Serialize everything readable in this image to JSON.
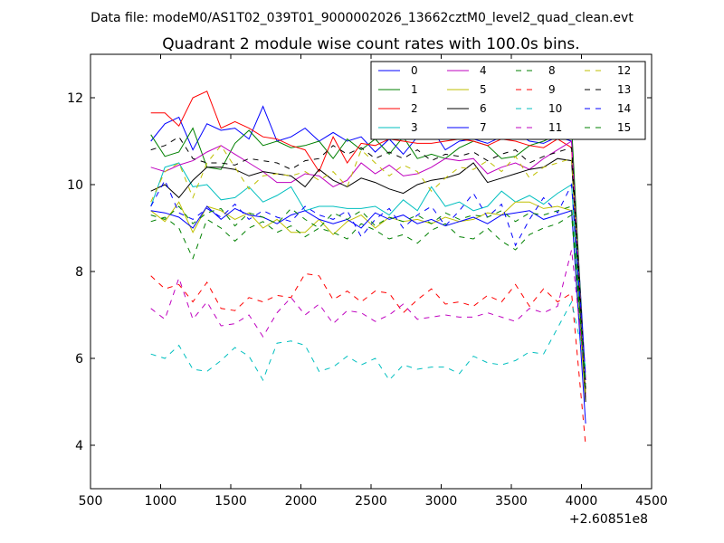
{
  "header": {
    "data_file": "Data file: modeM0/AS1T02_039T01_9000002026_13662cztM0_level2_quad_clean.evt"
  },
  "chart_data": {
    "type": "line",
    "title": "Quadrant 2 module wise count rates with 100.0s bins.",
    "xlabel": "",
    "ylabel": "",
    "xlim": [
      500,
      4500
    ],
    "ylim": [
      3,
      13
    ],
    "x_offset_label": "+2.60851e8",
    "xticks": [
      500,
      1000,
      1500,
      2000,
      2500,
      3000,
      3500,
      4000,
      4500
    ],
    "xtick_labels": [
      "500",
      "1000",
      "1500",
      "2000",
      "2500",
      "3000",
      "3500",
      "4000",
      "4500"
    ],
    "yticks": [
      4,
      6,
      8,
      10,
      12
    ],
    "ytick_labels": [
      "4",
      "6",
      "8",
      "10",
      "12"
    ],
    "legend_position": "top-right",
    "x": [
      930,
      1030,
      1130,
      1230,
      1330,
      1430,
      1530,
      1630,
      1730,
      1830,
      1930,
      2030,
      2130,
      2230,
      2330,
      2430,
      2530,
      2630,
      2730,
      2830,
      2930,
      3030,
      3130,
      3230,
      3330,
      3430,
      3530,
      3630,
      3730,
      3830,
      3930,
      4030
    ],
    "series": [
      {
        "name": "0",
        "color": "#0000ff",
        "dash": "solid",
        "values": [
          11.0,
          11.4,
          11.55,
          10.8,
          11.4,
          11.25,
          11.3,
          11.05,
          11.8,
          11.0,
          11.1,
          11.3,
          11.0,
          11.2,
          11.0,
          11.1,
          10.75,
          11.05,
          10.7,
          11.1,
          11.3,
          10.8,
          11.0,
          11.05,
          10.95,
          11.1,
          11.2,
          11.0,
          10.95,
          11.1,
          11.0,
          5.5
        ]
      },
      {
        "name": "1",
        "color": "#008000",
        "dash": "solid",
        "values": [
          11.15,
          10.65,
          10.75,
          11.3,
          10.4,
          10.35,
          10.95,
          11.25,
          10.9,
          11.0,
          10.85,
          10.9,
          11.0,
          10.6,
          11.05,
          10.8,
          11.05,
          10.7,
          11.1,
          10.6,
          10.7,
          10.6,
          10.85,
          11.0,
          10.9,
          10.6,
          10.65,
          10.9,
          11.0,
          11.15,
          11.35,
          5.2
        ]
      },
      {
        "name": "2",
        "color": "#ff0000",
        "dash": "solid",
        "values": [
          11.65,
          11.65,
          11.35,
          12.0,
          12.15,
          11.3,
          11.45,
          11.3,
          11.1,
          11.05,
          10.9,
          10.8,
          10.3,
          11.1,
          10.5,
          10.95,
          10.9,
          11.05,
          11.0,
          10.95,
          10.95,
          11.0,
          11.05,
          11.0,
          10.9,
          11.05,
          11.0,
          10.9,
          10.85,
          11.05,
          10.85,
          5.2
        ]
      },
      {
        "name": "3",
        "color": "#00bfbf",
        "dash": "solid",
        "values": [
          9.5,
          10.4,
          10.5,
          9.95,
          10.0,
          9.65,
          9.7,
          9.95,
          9.6,
          9.75,
          9.95,
          9.4,
          9.5,
          9.5,
          9.45,
          9.45,
          9.5,
          9.3,
          9.65,
          9.4,
          9.95,
          9.5,
          9.6,
          9.4,
          9.5,
          9.85,
          9.6,
          9.75,
          9.55,
          9.8,
          10.0,
          5.0
        ]
      },
      {
        "name": "4",
        "color": "#bf00bf",
        "dash": "solid",
        "values": [
          10.4,
          10.3,
          10.45,
          10.55,
          10.75,
          10.9,
          10.7,
          10.5,
          10.3,
          10.05,
          10.05,
          10.25,
          10.2,
          9.95,
          10.1,
          10.5,
          10.25,
          10.45,
          10.2,
          10.25,
          10.4,
          10.6,
          10.55,
          10.6,
          10.25,
          10.4,
          10.5,
          10.35,
          10.6,
          10.8,
          11.0,
          5.1
        ]
      },
      {
        "name": "5",
        "color": "#bfbf00",
        "dash": "solid",
        "values": [
          9.4,
          9.15,
          9.6,
          8.9,
          9.5,
          9.4,
          9.2,
          9.35,
          9.0,
          9.2,
          8.9,
          8.9,
          9.2,
          8.85,
          9.15,
          9.3,
          9.0,
          9.25,
          9.15,
          9.2,
          9.1,
          9.25,
          9.15,
          9.2,
          9.35,
          9.3,
          9.6,
          9.6,
          9.45,
          9.5,
          9.4,
          5.0
        ]
      },
      {
        "name": "6",
        "color": "#000000",
        "dash": "solid",
        "values": [
          9.85,
          10.0,
          9.7,
          10.1,
          10.4,
          10.4,
          10.35,
          10.2,
          10.3,
          10.25,
          10.2,
          9.95,
          10.35,
          10.1,
          9.95,
          10.15,
          10.05,
          9.9,
          9.8,
          10.0,
          10.1,
          10.15,
          10.25,
          10.5,
          10.05,
          10.15,
          10.25,
          10.35,
          10.4,
          10.6,
          10.55,
          5.0
        ]
      },
      {
        "name": "7",
        "color": "#0000ff",
        "dash": "solid",
        "values": [
          9.4,
          9.35,
          9.25,
          9.0,
          9.5,
          9.2,
          9.45,
          9.3,
          9.25,
          9.1,
          9.3,
          9.4,
          9.2,
          9.1,
          9.2,
          9.0,
          9.35,
          9.2,
          9.3,
          9.1,
          9.2,
          9.05,
          9.15,
          9.25,
          9.1,
          9.3,
          9.35,
          9.4,
          9.2,
          9.3,
          9.4,
          4.5
        ]
      },
      {
        "name": "8",
        "color": "#008000",
        "dash": "dashed",
        "values": [
          9.15,
          9.25,
          9.0,
          8.3,
          9.2,
          9.0,
          8.7,
          9.0,
          9.15,
          8.9,
          9.05,
          8.8,
          9.0,
          8.9,
          8.75,
          9.1,
          8.95,
          8.75,
          8.85,
          8.65,
          8.95,
          9.1,
          8.8,
          8.75,
          9.0,
          8.7,
          8.5,
          8.85,
          9.0,
          9.1,
          9.3,
          5.2
        ]
      },
      {
        "name": "9",
        "color": "#ff0000",
        "dash": "dashed",
        "values": [
          7.9,
          7.6,
          7.7,
          7.3,
          7.75,
          7.15,
          7.1,
          7.4,
          7.3,
          7.45,
          7.4,
          7.95,
          7.9,
          7.35,
          7.55,
          7.3,
          7.55,
          7.5,
          7.05,
          7.35,
          7.6,
          7.25,
          7.3,
          7.2,
          7.45,
          7.3,
          7.7,
          7.2,
          7.6,
          7.3,
          7.5,
          4.0
        ]
      },
      {
        "name": "10",
        "color": "#00bfbf",
        "dash": "dashed",
        "values": [
          6.1,
          6.0,
          6.3,
          5.75,
          5.7,
          5.95,
          6.25,
          6.05,
          5.5,
          6.35,
          6.4,
          6.3,
          5.7,
          5.8,
          6.05,
          5.85,
          6.0,
          5.5,
          5.85,
          5.75,
          5.8,
          5.8,
          5.65,
          6.05,
          5.9,
          5.85,
          5.95,
          6.15,
          6.1,
          6.7,
          7.3,
          5.8
        ]
      },
      {
        "name": "11",
        "color": "#bf00bf",
        "dash": "dashed",
        "values": [
          7.15,
          6.9,
          7.85,
          6.9,
          7.3,
          6.75,
          6.8,
          7.0,
          6.5,
          7.05,
          7.4,
          7.0,
          7.25,
          6.8,
          7.1,
          7.05,
          6.85,
          7.0,
          7.25,
          6.9,
          6.95,
          7.0,
          6.95,
          6.95,
          7.05,
          6.95,
          6.85,
          7.15,
          7.05,
          7.2,
          8.5,
          5.5
        ]
      },
      {
        "name": "12",
        "color": "#bfbf00",
        "dash": "dashed",
        "values": [
          9.6,
          10.3,
          10.5,
          9.7,
          10.5,
          10.9,
          10.4,
          9.9,
          10.2,
          10.25,
          10.2,
          10.3,
          10.1,
          10.3,
          9.95,
          10.8,
          10.5,
          10.2,
          10.45,
          10.3,
          9.85,
          10.15,
          10.4,
          10.35,
          10.55,
          10.3,
          10.65,
          10.15,
          10.4,
          10.5,
          10.6,
          5.2
        ]
      },
      {
        "name": "13",
        "color": "#000000",
        "dash": "dashed",
        "values": [
          10.8,
          10.9,
          11.1,
          10.6,
          10.5,
          10.5,
          10.45,
          10.6,
          10.55,
          10.5,
          10.35,
          10.55,
          10.6,
          10.9,
          10.7,
          10.85,
          10.6,
          10.75,
          10.6,
          10.8,
          10.55,
          10.7,
          10.65,
          10.75,
          10.55,
          10.7,
          10.8,
          10.5,
          10.65,
          10.75,
          10.85,
          5.3
        ]
      },
      {
        "name": "14",
        "color": "#0000ff",
        "dash": "dashed",
        "values": [
          9.5,
          10.1,
          9.35,
          9.2,
          9.45,
          9.25,
          9.55,
          9.2,
          9.4,
          9.25,
          9.15,
          9.5,
          9.3,
          9.2,
          9.4,
          8.8,
          9.2,
          9.45,
          9.0,
          9.3,
          9.5,
          9.05,
          9.4,
          9.8,
          9.25,
          9.55,
          8.6,
          9.2,
          9.7,
          9.35,
          10.0,
          5.6
        ]
      },
      {
        "name": "15",
        "color": "#008000",
        "dash": "dashed",
        "values": [
          9.3,
          9.2,
          9.5,
          9.1,
          9.35,
          9.45,
          9.05,
          9.35,
          9.25,
          9.1,
          9.45,
          9.2,
          9.0,
          9.35,
          9.2,
          9.4,
          9.05,
          9.25,
          9.15,
          9.3,
          9.1,
          9.35,
          9.2,
          9.3,
          9.25,
          9.4,
          9.15,
          9.35,
          9.3,
          9.4,
          9.5,
          5.4
        ]
      }
    ]
  }
}
